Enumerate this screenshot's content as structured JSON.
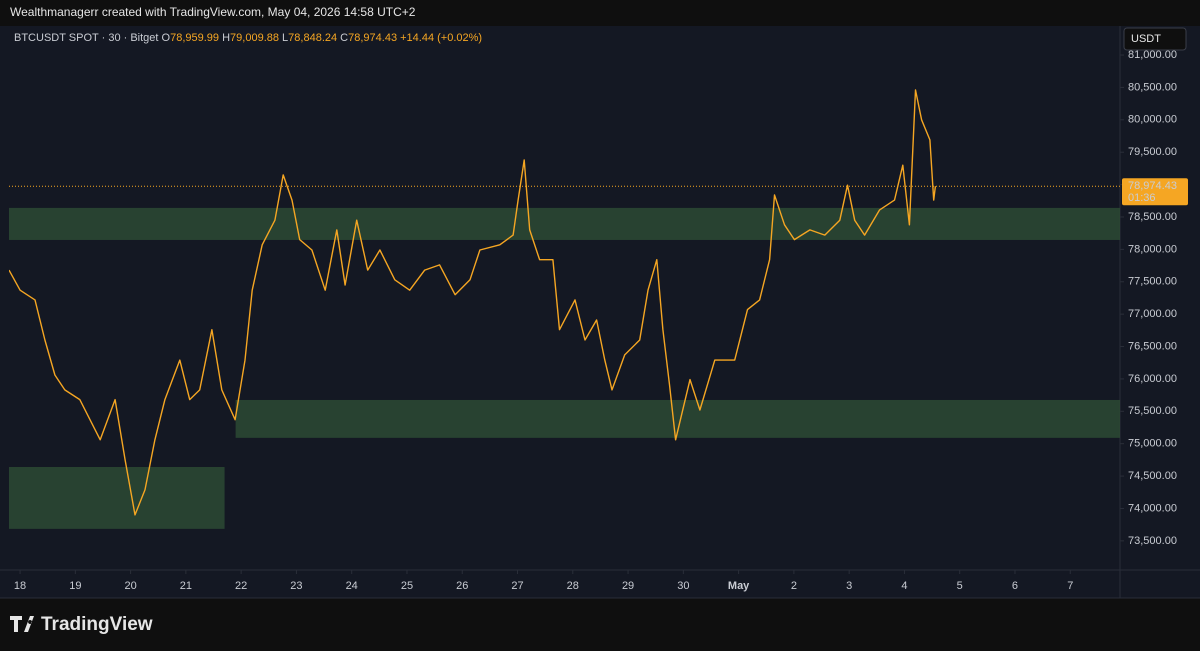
{
  "header": {
    "credit": "Wealthmanagerr created with TradingView.com, May 04, 2026 14:58 UTC+2",
    "symbol": "BTCUSDT SPOT · 30 · Bitget",
    "legend": [
      {
        "key": "O",
        "value": "78,959.99"
      },
      {
        "key": "H",
        "value": "79,009.88"
      },
      {
        "key": "L",
        "value": "78,848.24"
      },
      {
        "key": "C",
        "value": "78,974.43"
      }
    ],
    "change": "+14.44 (+0.02%)",
    "currency": "USDT"
  },
  "footer": {
    "brand": "TradingView"
  },
  "chart_data": {
    "type": "line",
    "color": "#f5a623",
    "x": [
      17.8,
      18.0,
      18.27,
      18.45,
      18.63,
      18.81,
      19.08,
      19.45,
      19.72,
      19.9,
      20.08,
      20.26,
      20.44,
      20.62,
      20.89,
      21.07,
      21.25,
      21.47,
      21.65,
      21.89,
      22.07,
      22.2,
      22.38,
      22.61,
      22.76,
      22.92,
      23.06,
      23.28,
      23.52,
      23.73,
      23.88,
      24.09,
      24.29,
      24.51,
      24.78,
      25.05,
      25.32,
      25.59,
      25.87,
      26.14,
      26.32,
      26.68,
      26.92,
      27.01,
      27.12,
      27.22,
      27.4,
      27.64,
      27.76,
      28.04,
      28.22,
      28.43,
      28.58,
      28.71,
      28.94,
      29.21,
      29.36,
      29.52,
      29.63,
      29.75,
      29.86,
      30.12,
      30.3,
      30.57,
      30.93,
      31.16,
      31.38,
      31.56,
      31.65,
      31.83,
      32.01,
      32.29,
      32.56,
      32.83,
      32.97,
      33.1,
      33.28,
      33.55,
      33.82,
      33.97,
      34.09,
      34.2,
      34.31,
      34.46,
      34.53,
      34.56
    ],
    "values": [
      77680,
      77370,
      77220,
      76600,
      76060,
      75830,
      75680,
      75060,
      75680,
      74750,
      73900,
      74290,
      75060,
      75680,
      76290,
      75680,
      75830,
      76760,
      75830,
      75370,
      76290,
      77370,
      78070,
      78450,
      79150,
      78760,
      78150,
      77990,
      77370,
      78300,
      77450,
      78450,
      77680,
      77990,
      77530,
      77370,
      77680,
      77760,
      77300,
      77530,
      77990,
      78070,
      78220,
      78760,
      79380,
      78300,
      77840,
      77840,
      76760,
      77220,
      76600,
      76910,
      76290,
      75830,
      76370,
      76600,
      77370,
      77840,
      76760,
      75910,
      75060,
      75990,
      75520,
      76290,
      76290,
      77070,
      77220,
      77840,
      78840,
      78380,
      78150,
      78300,
      78220,
      78450,
      78990,
      78450,
      78220,
      78610,
      78760,
      79300,
      78380,
      80460,
      80000,
      79690,
      78760,
      78974.43
    ],
    "zones": [
      {
        "ylim": [
          78145,
          78640
        ],
        "xlim": [
          17.8,
          37.9
        ]
      },
      {
        "ylim": [
          75090,
          75675
        ],
        "xlim": [
          21.9,
          37.9
        ]
      },
      {
        "ylim": [
          73685,
          74640
        ],
        "xlim": [
          17.8,
          21.7
        ]
      }
    ],
    "zone_color": "#2b4a34",
    "last_price": {
      "value": 78974.43,
      "label": "78,974.43",
      "countdown": "01:36"
    },
    "xlim": [
      17.8,
      37.9
    ],
    "ylim": [
      73050,
      81155
    ],
    "xticks": [
      18,
      19,
      20,
      21,
      22,
      23,
      24,
      25,
      26,
      27,
      28,
      29,
      30,
      {
        "value": 31,
        "label": "May"
      },
      {
        "value": 32,
        "label": "2"
      },
      {
        "value": 33,
        "label": "3"
      },
      {
        "value": 34,
        "label": "4"
      },
      {
        "value": 35,
        "label": "5"
      },
      {
        "value": 36,
        "label": "6"
      },
      {
        "value": 37,
        "label": "7"
      }
    ],
    "yticks": [
      {
        "value": 73500,
        "label": "73,500.00"
      },
      {
        "value": 74000,
        "label": "74,000.00"
      },
      {
        "value": 74500,
        "label": "74,500.00"
      },
      {
        "value": 75000,
        "label": "75,000.00"
      },
      {
        "value": 75500,
        "label": "75,500.00"
      },
      {
        "value": 76000,
        "label": "76,000.00"
      },
      {
        "value": 76500,
        "label": "76,500.00"
      },
      {
        "value": 77000,
        "label": "77,000.00"
      },
      {
        "value": 77500,
        "label": "77,500.00"
      },
      {
        "value": 78000,
        "label": "78,000.00"
      },
      {
        "value": 78500,
        "label": "78,500.00"
      },
      {
        "value": 79000,
        "label": "79,000.00"
      },
      {
        "value": 79500,
        "label": "79,500.00"
      },
      {
        "value": 80000,
        "label": "80,000.00"
      },
      {
        "value": 80500,
        "label": "80,500.00"
      },
      {
        "value": 81000,
        "label": "81,000.00"
      }
    ]
  }
}
